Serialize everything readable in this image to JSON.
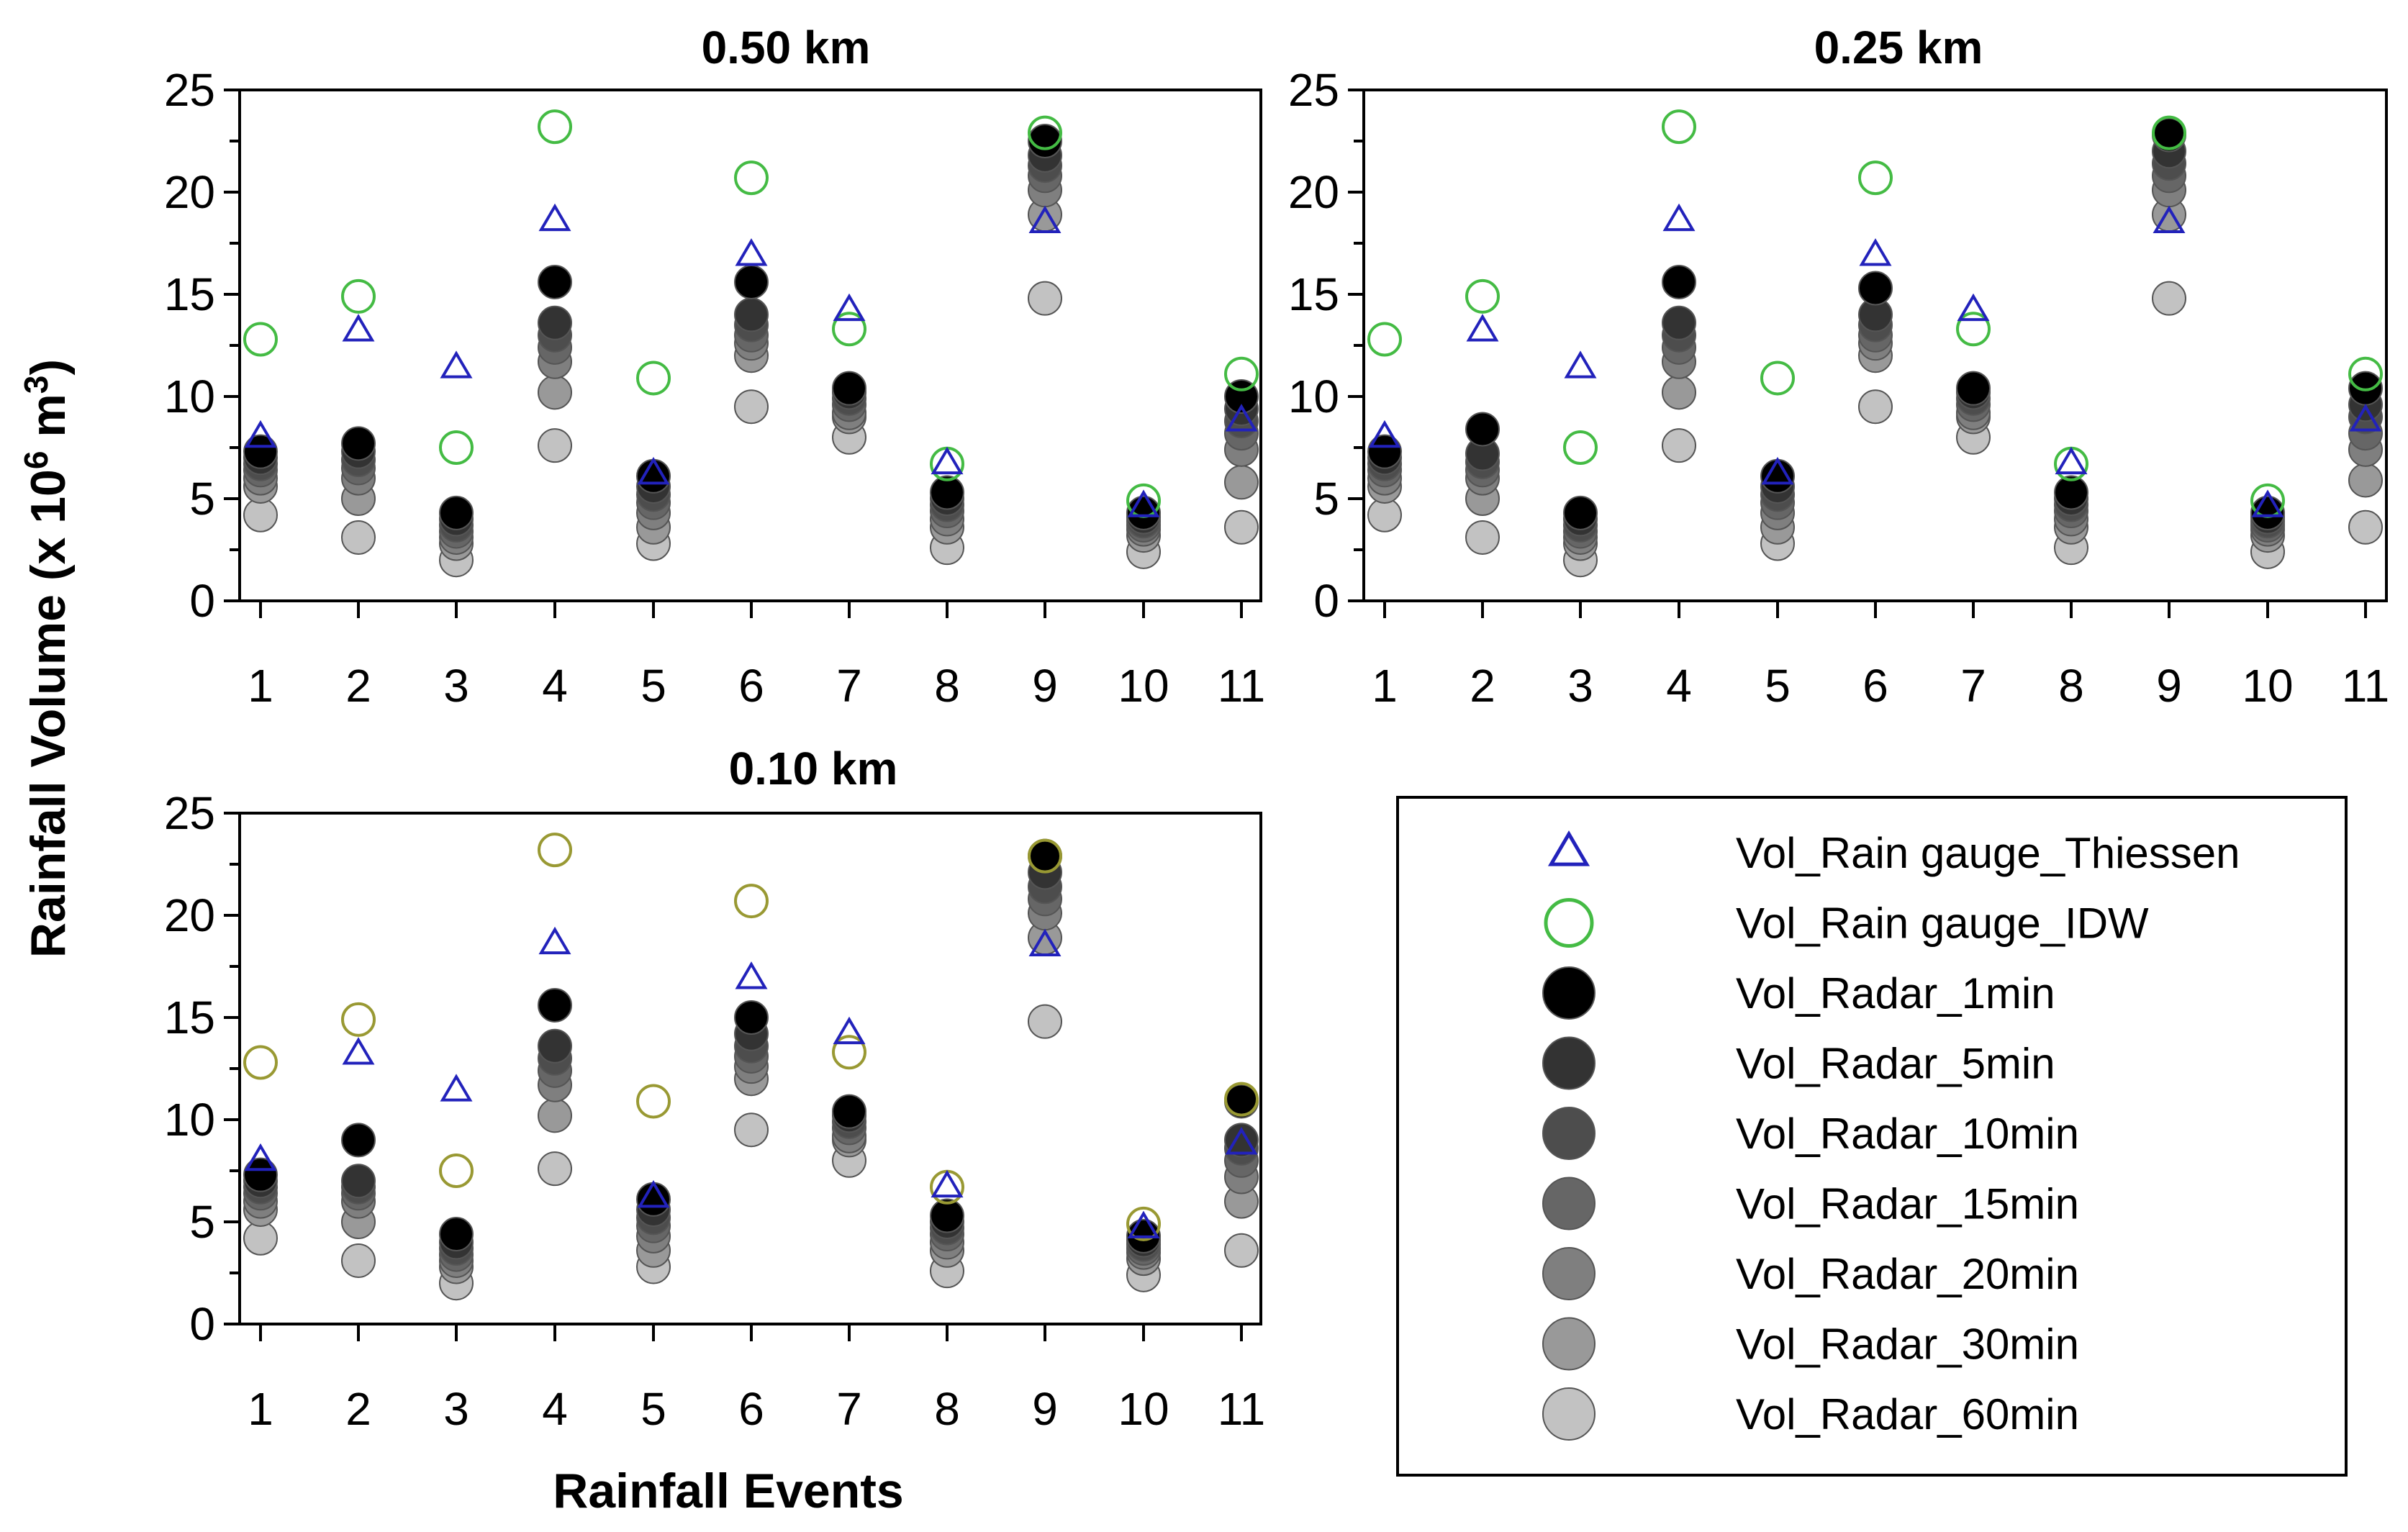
{
  "figure": {
    "ylabel": "Rainfall Volume (x 10",
    "ylabel_sup1": "6",
    "ylabel_mid": " m",
    "ylabel_sup2": "3",
    "ylabel_end": ")",
    "xlabel": "Rainfall Events"
  },
  "legend": {
    "items": [
      {
        "label": "Vol_Rain gauge_Thiessen",
        "marker": "triangle",
        "color": "#2222bb"
      },
      {
        "label": "Vol_Rain gauge_IDW",
        "marker": "circle-open",
        "color": "#44bb44"
      },
      {
        "label": "Vol_Radar_1min",
        "marker": "circle",
        "color": "#000000"
      },
      {
        "label": "Vol_Radar_5min",
        "marker": "circle",
        "color": "#333333"
      },
      {
        "label": "Vol_Radar_10min",
        "marker": "circle",
        "color": "#4d4d4d"
      },
      {
        "label": "Vol_Radar_15min",
        "marker": "circle",
        "color": "#666666"
      },
      {
        "label": "Vol_Radar_20min",
        "marker": "circle",
        "color": "#7f7f7f"
      },
      {
        "label": "Vol_Radar_30min",
        "marker": "circle",
        "color": "#999999"
      },
      {
        "label": "Vol_Radar_60min",
        "marker": "circle",
        "color": "#c2c2c2"
      }
    ]
  },
  "chart_data": [
    {
      "type": "scatter",
      "title": "0.50 km",
      "idw_color": "#44bb44",
      "x": [
        1,
        2,
        3,
        4,
        5,
        6,
        7,
        8,
        9,
        10,
        11
      ],
      "ylim": [
        0,
        25
      ],
      "yticks": [
        0,
        5,
        10,
        15,
        20,
        25
      ],
      "series": [
        {
          "name": "Vol_Rain gauge_Thiessen",
          "values": [
            8.0,
            13.2,
            11.4,
            18.6,
            6.2,
            16.9,
            14.2,
            6.7,
            18.5,
            4.6,
            8.8
          ]
        },
        {
          "name": "Vol_Rain gauge_IDW",
          "values": [
            12.8,
            14.9,
            7.5,
            23.2,
            10.9,
            20.7,
            13.3,
            6.7,
            22.9,
            4.9,
            11.1
          ]
        },
        {
          "name": "Vol_Radar_1min",
          "values": [
            7.3,
            7.7,
            4.3,
            15.6,
            6.1,
            15.6,
            10.4,
            5.3,
            22.5,
            4.3,
            10.0
          ]
        },
        {
          "name": "Vol_Radar_5min",
          "values": [
            7.0,
            7.3,
            4.0,
            13.6,
            5.6,
            14.0,
            10.2,
            5.0,
            21.8,
            4.1,
            9.4
          ]
        },
        {
          "name": "Vol_Radar_10min",
          "values": [
            6.7,
            6.9,
            3.7,
            13.0,
            5.2,
            13.5,
            9.9,
            4.7,
            21.3,
            3.9,
            8.8
          ]
        },
        {
          "name": "Vol_Radar_15min",
          "values": [
            6.4,
            6.5,
            3.4,
            12.4,
            4.8,
            13.0,
            9.6,
            4.4,
            20.8,
            3.7,
            8.2
          ]
        },
        {
          "name": "Vol_Radar_20min",
          "values": [
            6.0,
            6.0,
            3.1,
            11.7,
            4.3,
            12.6,
            9.2,
            4.0,
            20.1,
            3.5,
            7.4
          ]
        },
        {
          "name": "Vol_Radar_30min",
          "values": [
            5.6,
            5.0,
            2.8,
            10.2,
            3.6,
            12.0,
            9.0,
            3.6,
            18.9,
            3.2,
            5.8
          ]
        },
        {
          "name": "Vol_Radar_60min",
          "values": [
            4.2,
            3.1,
            2.0,
            7.6,
            2.8,
            9.5,
            8.0,
            2.6,
            14.8,
            2.4,
            3.6
          ]
        }
      ]
    },
    {
      "type": "scatter",
      "title": "0.25 km",
      "idw_color": "#44bb44",
      "x": [
        1,
        2,
        3,
        4,
        5,
        6,
        7,
        8,
        9,
        10,
        11
      ],
      "ylim": [
        0,
        25
      ],
      "yticks": [
        0,
        5,
        10,
        15,
        20,
        25
      ],
      "series": [
        {
          "name": "Vol_Rain gauge_Thiessen",
          "values": [
            8.0,
            13.2,
            11.4,
            18.6,
            6.2,
            16.9,
            14.2,
            6.7,
            18.5,
            4.6,
            8.8
          ]
        },
        {
          "name": "Vol_Rain gauge_IDW",
          "values": [
            12.8,
            14.9,
            7.5,
            23.2,
            10.9,
            20.7,
            13.3,
            6.7,
            22.9,
            4.9,
            11.1
          ]
        },
        {
          "name": "Vol_Radar_1min",
          "values": [
            7.3,
            8.4,
            4.3,
            15.6,
            6.1,
            15.3,
            10.4,
            5.3,
            22.8,
            4.3,
            10.4
          ]
        },
        {
          "name": "Vol_Radar_5min",
          "values": [
            7.0,
            7.2,
            4.0,
            13.6,
            5.6,
            14.0,
            10.2,
            5.0,
            22.0,
            4.1,
            9.6
          ]
        },
        {
          "name": "Vol_Radar_10min",
          "values": [
            6.7,
            6.8,
            3.7,
            13.0,
            5.2,
            13.5,
            9.9,
            4.7,
            21.4,
            3.9,
            9.0
          ]
        },
        {
          "name": "Vol_Radar_15min",
          "values": [
            6.4,
            6.4,
            3.4,
            12.4,
            4.8,
            13.0,
            9.6,
            4.4,
            20.8,
            3.7,
            8.2
          ]
        },
        {
          "name": "Vol_Radar_20min",
          "values": [
            6.0,
            6.0,
            3.1,
            11.7,
            4.3,
            12.6,
            9.2,
            4.0,
            20.1,
            3.5,
            7.4
          ]
        },
        {
          "name": "Vol_Radar_30min",
          "values": [
            5.6,
            5.0,
            2.8,
            10.2,
            3.6,
            12.0,
            9.0,
            3.6,
            18.9,
            3.2,
            5.9
          ]
        },
        {
          "name": "Vol_Radar_60min",
          "values": [
            4.2,
            3.1,
            2.0,
            7.6,
            2.8,
            9.5,
            8.0,
            2.6,
            14.8,
            2.4,
            3.6
          ]
        }
      ]
    },
    {
      "type": "scatter",
      "title": "0.10 km",
      "idw_color": "#999933",
      "x": [
        1,
        2,
        3,
        4,
        5,
        6,
        7,
        8,
        9,
        10,
        11
      ],
      "ylim": [
        0,
        25
      ],
      "yticks": [
        0,
        5,
        10,
        15,
        20,
        25
      ],
      "series": [
        {
          "name": "Vol_Rain gauge_Thiessen",
          "values": [
            8.0,
            13.2,
            11.4,
            18.6,
            6.2,
            16.9,
            14.2,
            6.7,
            18.5,
            4.7,
            8.8
          ]
        },
        {
          "name": "Vol_Rain gauge_IDW",
          "values": [
            12.8,
            14.9,
            7.5,
            23.2,
            10.9,
            20.7,
            13.3,
            6.7,
            22.9,
            4.9,
            11.0
          ]
        },
        {
          "name": "Vol_Radar_1min",
          "values": [
            7.3,
            9.0,
            4.4,
            15.6,
            6.1,
            15.0,
            10.4,
            5.3,
            22.9,
            4.3,
            10.9
          ]
        },
        {
          "name": "Vol_Radar_5min",
          "values": [
            7.0,
            7.0,
            4.0,
            13.6,
            5.6,
            14.2,
            10.2,
            5.0,
            22.1,
            4.1,
            9.0
          ]
        },
        {
          "name": "Vol_Radar_10min",
          "values": [
            6.7,
            6.7,
            3.7,
            13.0,
            5.2,
            13.6,
            9.9,
            4.7,
            21.4,
            3.9,
            8.6
          ]
        },
        {
          "name": "Vol_Radar_15min",
          "values": [
            6.4,
            6.4,
            3.4,
            12.4,
            4.8,
            13.1,
            9.6,
            4.4,
            20.8,
            3.7,
            8.0
          ]
        },
        {
          "name": "Vol_Radar_20min",
          "values": [
            6.0,
            6.0,
            3.1,
            11.7,
            4.3,
            12.6,
            9.2,
            4.0,
            20.1,
            3.5,
            7.2
          ]
        },
        {
          "name": "Vol_Radar_30min",
          "values": [
            5.6,
            5.0,
            2.8,
            10.2,
            3.6,
            12.0,
            9.0,
            3.6,
            18.9,
            3.2,
            6.0
          ]
        },
        {
          "name": "Vol_Radar_60min",
          "values": [
            4.2,
            3.1,
            2.0,
            7.6,
            2.8,
            9.5,
            8.0,
            2.6,
            14.8,
            2.4,
            3.6
          ]
        }
      ]
    }
  ]
}
